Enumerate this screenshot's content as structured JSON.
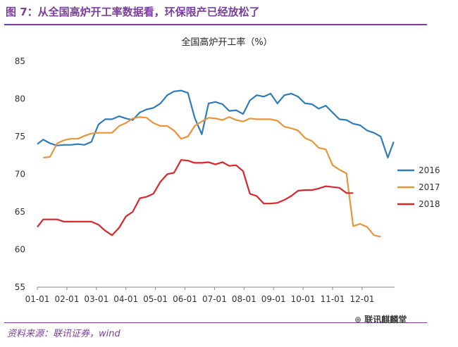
{
  "figure": {
    "heading": "图 7：从全国高炉开工率数据看，环保限产已经放松了",
    "source": "资料来源：联讯证券，wind",
    "watermark": "联讯麒麟堂",
    "accent_color": "#7a3e9d"
  },
  "chart_data": {
    "type": "line",
    "title": "全国高炉开工率（%）",
    "xlabel": "",
    "ylabel": "",
    "ylim": [
      55,
      85
    ],
    "yticks": [
      55,
      60,
      65,
      70,
      75,
      80,
      85
    ],
    "xlim": [
      1.0,
      12.8
    ],
    "xticks": [
      {
        "value": 1,
        "label": "01-01"
      },
      {
        "value": 2,
        "label": "02-01"
      },
      {
        "value": 3,
        "label": "03-01"
      },
      {
        "value": 4,
        "label": "04-01"
      },
      {
        "value": 5,
        "label": "05-01"
      },
      {
        "value": 6,
        "label": "06-01"
      },
      {
        "value": 7,
        "label": "07-01"
      },
      {
        "value": 8,
        "label": "08-01"
      },
      {
        "value": 9,
        "label": "09-01"
      },
      {
        "value": 10,
        "label": "10-01"
      },
      {
        "value": 11,
        "label": "11-01"
      },
      {
        "value": 12,
        "label": "12-01"
      }
    ],
    "x_unit": "month (01-01 = 1)",
    "grid": false,
    "legend_position": "right",
    "series": [
      {
        "name": "2016",
        "color": "#2e7db8",
        "x": [
          1.0,
          1.2,
          1.43,
          1.67,
          1.9,
          2.13,
          2.37,
          2.6,
          2.83,
          3.07,
          3.3,
          3.53,
          3.77,
          4.0,
          4.23,
          4.47,
          4.7,
          4.93,
          5.17,
          5.4,
          5.63,
          5.87,
          6.1,
          6.33,
          6.57,
          6.8,
          7.03,
          7.27,
          7.5,
          7.73,
          7.97,
          8.2,
          8.43,
          8.67,
          8.9,
          9.13,
          9.37,
          9.6,
          9.83,
          10.07,
          10.3,
          10.53,
          10.77,
          11.0,
          11.23,
          11.47,
          11.7,
          11.93,
          12.17,
          12.4,
          12.63
        ],
        "values": [
          74.0,
          74.6,
          74.1,
          73.8,
          73.9,
          73.9,
          74.0,
          73.9,
          74.3,
          76.6,
          77.3,
          77.3,
          77.7,
          77.4,
          77.2,
          78.2,
          78.6,
          78.8,
          79.4,
          80.5,
          81.0,
          81.1,
          80.8,
          77.5,
          75.3,
          79.4,
          79.6,
          79.3,
          78.4,
          78.5,
          78.0,
          79.8,
          80.5,
          80.3,
          80.7,
          79.4,
          80.5,
          80.7,
          80.3,
          79.4,
          79.3,
          78.7,
          79.1,
          78.2,
          77.3,
          77.2,
          76.7,
          76.5,
          75.8,
          75.5,
          75.0
        ],
        "extra_tail": {
          "x": [
            12.63,
            12.87,
            13.07
          ],
          "values": [
            75.0,
            72.2,
            74.3
          ]
        }
      },
      {
        "name": "2017",
        "color": "#e8943a",
        "x": [
          1.2,
          1.43,
          1.67,
          1.9,
          2.13,
          2.37,
          2.6,
          2.83,
          3.07,
          3.3,
          3.53,
          3.77,
          4.0,
          4.23,
          4.47,
          4.7,
          4.93,
          5.17,
          5.4,
          5.63,
          5.87,
          6.1,
          6.33,
          6.57,
          6.8,
          7.03,
          7.27,
          7.5,
          7.73,
          7.97,
          8.2,
          8.43,
          8.67,
          8.9,
          9.13,
          9.37,
          9.6,
          9.83,
          10.07,
          10.3,
          10.53,
          10.77,
          11.0,
          11.23,
          11.47,
          11.7,
          11.93,
          12.17,
          12.4,
          12.63
        ],
        "values": [
          72.2,
          72.3,
          74.1,
          74.5,
          74.7,
          74.7,
          75.1,
          75.4,
          75.5,
          75.5,
          75.5,
          76.4,
          76.8,
          77.4,
          77.6,
          77.5,
          76.8,
          76.4,
          76.4,
          75.8,
          74.7,
          75.0,
          76.4,
          77.0,
          77.5,
          77.4,
          77.2,
          77.6,
          77.2,
          77.0,
          77.4,
          77.3,
          77.3,
          77.3,
          77.1,
          76.3,
          76.1,
          75.8,
          74.8,
          74.4,
          73.5,
          73.3,
          71.2,
          70.6,
          70.1,
          63.1,
          63.4,
          63.0,
          61.9,
          61.7
        ]
      },
      {
        "name": "2018",
        "color": "#d8272a",
        "x": [
          1.0,
          1.2,
          1.43,
          1.67,
          1.9,
          2.13,
          2.37,
          2.6,
          2.83,
          3.07,
          3.3,
          3.53,
          3.77,
          4.0,
          4.23,
          4.47,
          4.7,
          4.93,
          5.17,
          5.4,
          5.63,
          5.87,
          6.1,
          6.33,
          6.57,
          6.8,
          7.03,
          7.27,
          7.5,
          7.73,
          7.97,
          8.2,
          8.43,
          8.67,
          8.9,
          9.13,
          9.37,
          9.6,
          9.83,
          10.07,
          10.3,
          10.53,
          10.77,
          11.0,
          11.23,
          11.47,
          11.7
        ],
        "values": [
          63.0,
          64.0,
          64.0,
          64.0,
          63.7,
          63.7,
          63.7,
          63.7,
          63.7,
          63.3,
          62.5,
          61.9,
          62.9,
          64.4,
          65.0,
          66.8,
          67.0,
          67.4,
          69.0,
          70.0,
          70.2,
          71.9,
          71.8,
          71.5,
          71.5,
          71.6,
          71.3,
          71.6,
          71.1,
          71.2,
          70.4,
          67.4,
          67.1,
          66.1,
          66.1,
          66.2,
          66.6,
          67.1,
          67.8,
          67.9,
          67.9,
          68.1,
          68.4,
          68.3,
          68.2,
          67.5,
          67.5
        ]
      }
    ]
  }
}
